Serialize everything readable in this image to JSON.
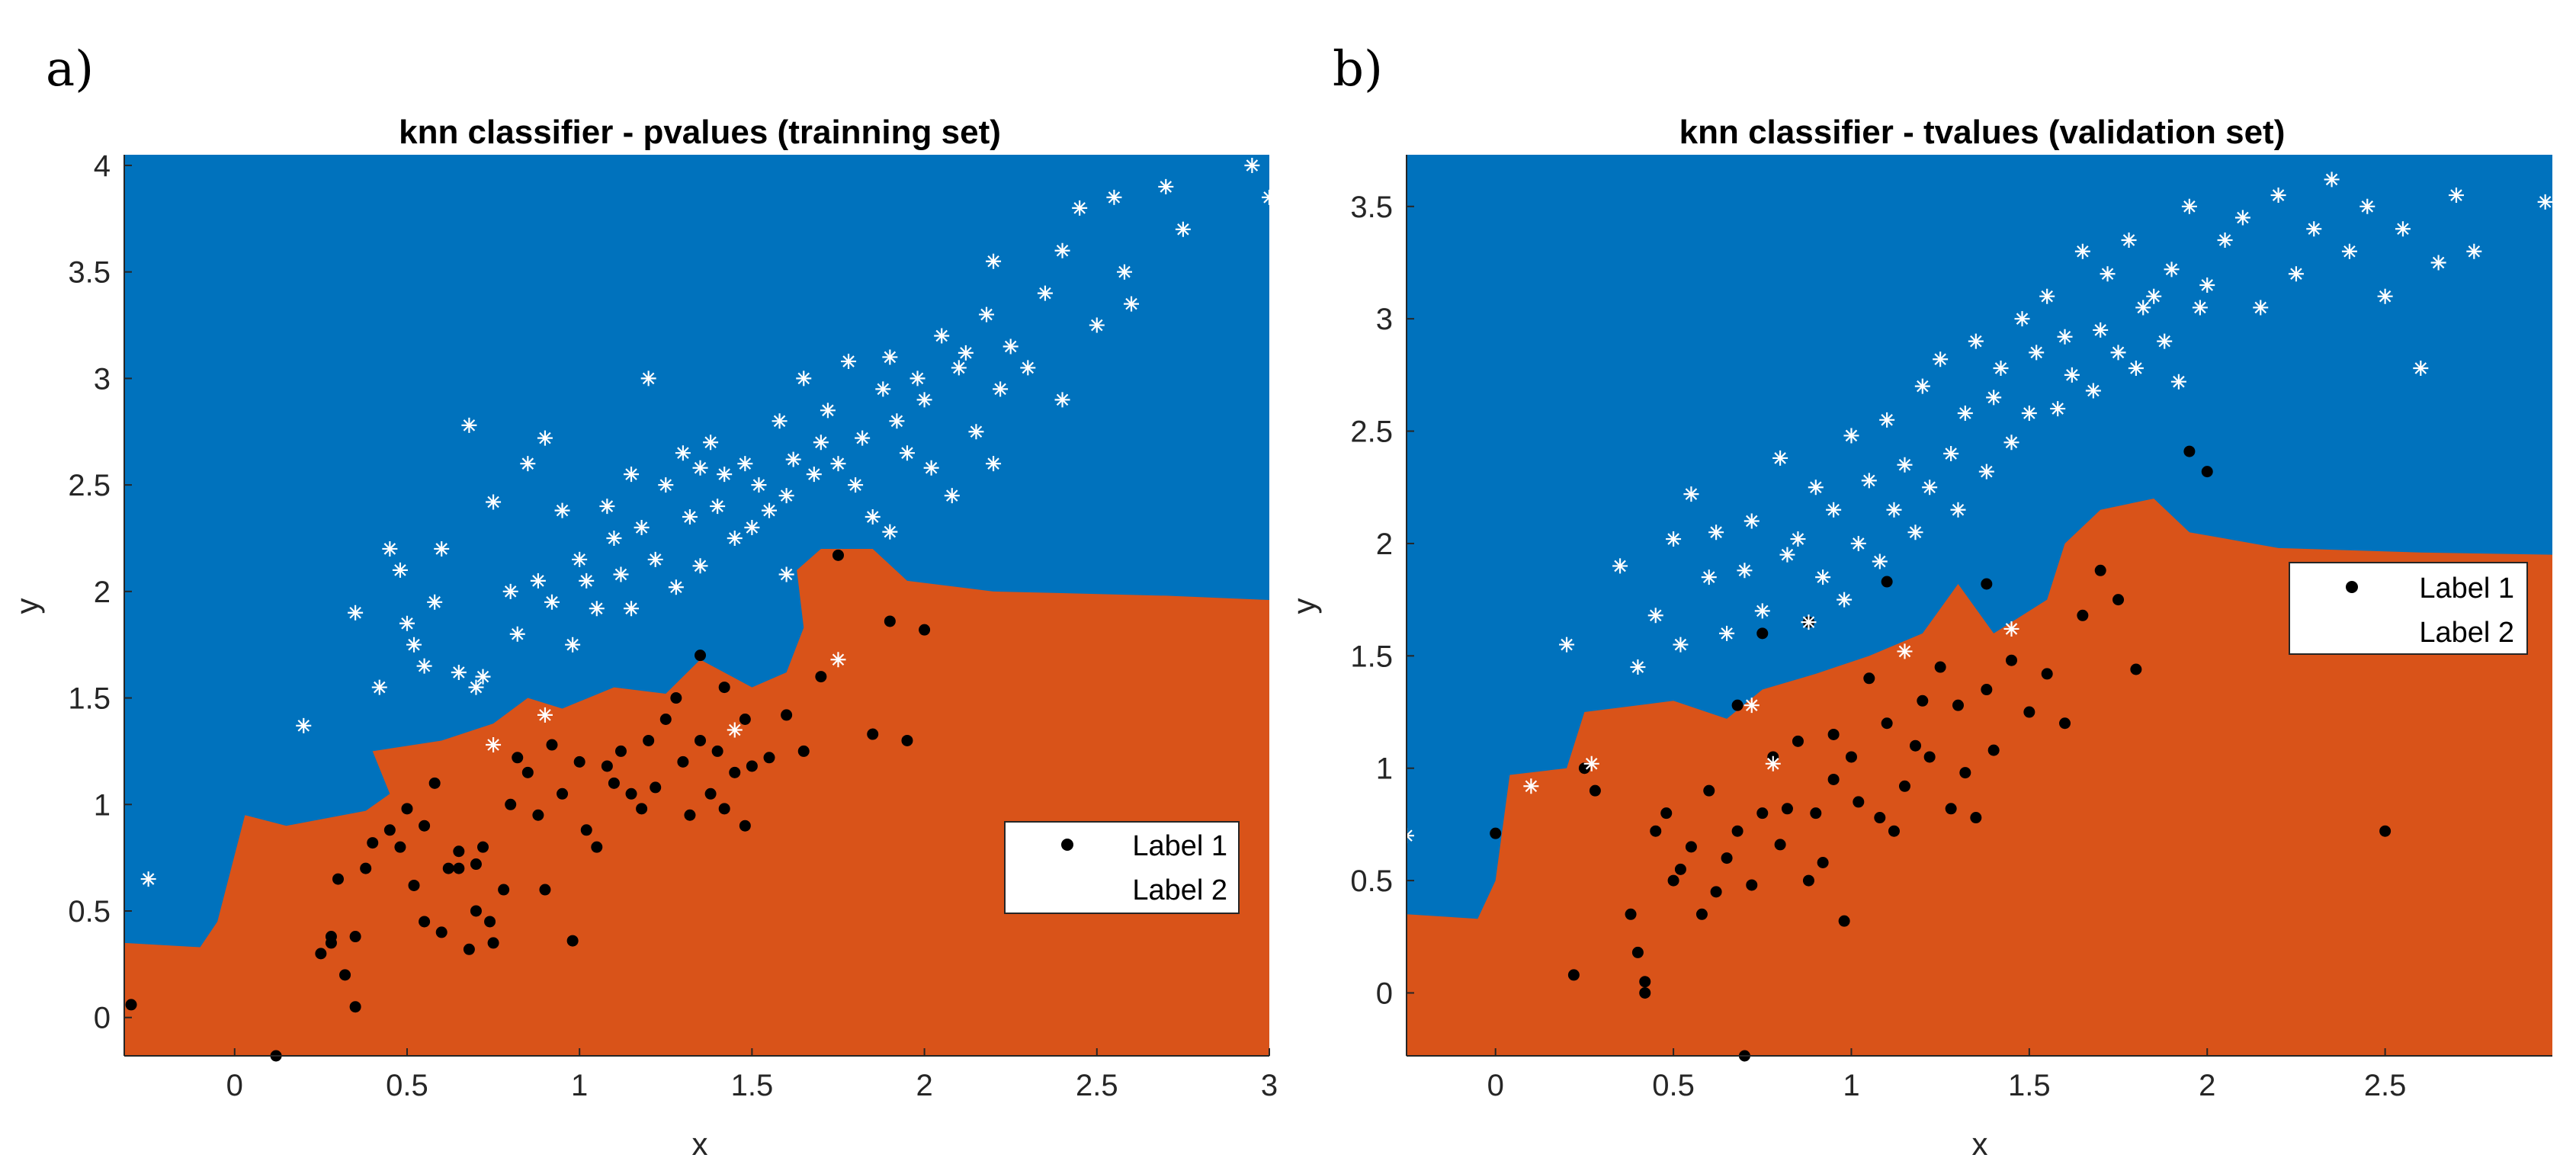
{
  "colors": {
    "class1_region": "#D95319",
    "class2_region": "#0072BD",
    "label1_marker": "#000000",
    "label2_marker": "#FFFFFF"
  },
  "chart_data": [
    {
      "panel": "a)",
      "type": "scatter",
      "title": "knn classifier - pvalues (trainning set)",
      "xlabel": "x",
      "ylabel": "y",
      "xlim": [
        -0.32,
        3.0
      ],
      "ylim": [
        -0.18,
        4.05
      ],
      "xticks": [
        "0",
        "0.5",
        "1",
        "1.5",
        "2",
        "2.5",
        "3"
      ],
      "yticks": [
        "0",
        "0.5",
        "1",
        "1.5",
        "2",
        "2.5",
        "3",
        "3.5",
        "4"
      ],
      "legend": {
        "placement": "lower-right",
        "entries": [
          "Label 1",
          "Label 2"
        ]
      },
      "decision_boundary": [
        [
          -0.32,
          0.35
        ],
        [
          -0.1,
          0.33
        ],
        [
          -0.05,
          0.45
        ],
        [
          0.03,
          0.95
        ],
        [
          0.15,
          0.9
        ],
        [
          0.38,
          0.97
        ],
        [
          0.45,
          1.05
        ],
        [
          0.4,
          1.25
        ],
        [
          0.6,
          1.3
        ],
        [
          0.75,
          1.38
        ],
        [
          0.85,
          1.5
        ],
        [
          0.95,
          1.45
        ],
        [
          1.1,
          1.55
        ],
        [
          1.25,
          1.52
        ],
        [
          1.35,
          1.68
        ],
        [
          1.5,
          1.55
        ],
        [
          1.6,
          1.62
        ],
        [
          1.65,
          1.83
        ],
        [
          1.63,
          2.1
        ],
        [
          1.7,
          2.2
        ],
        [
          1.85,
          2.2
        ],
        [
          1.95,
          2.05
        ],
        [
          2.2,
          2.0
        ],
        [
          2.7,
          1.98
        ],
        [
          3.0,
          1.96
        ]
      ],
      "series": [
        {
          "name": "Label 1",
          "marker": "dot",
          "x": [
            -0.3,
            0.12,
            0.25,
            0.28,
            0.3,
            0.32,
            0.35,
            0.35,
            0.38,
            0.4,
            0.45,
            0.48,
            0.5,
            0.52,
            0.55,
            0.55,
            0.58,
            0.6,
            0.62,
            0.65,
            0.68,
            0.7,
            0.72,
            0.74,
            0.75,
            0.78,
            0.8,
            0.82,
            0.85,
            0.88,
            0.9,
            0.92,
            0.95,
            0.98,
            1.0,
            1.02,
            1.05,
            1.08,
            1.1,
            1.12,
            1.15,
            1.18,
            1.2,
            1.22,
            1.25,
            1.28,
            1.3,
            1.32,
            1.35,
            1.38,
            1.4,
            1.42,
            1.45,
            1.48,
            1.5,
            1.55,
            1.6,
            1.65,
            1.7,
            1.75,
            1.85,
            1.9,
            1.95,
            2.0,
            1.35,
            1.42,
            1.48,
            0.65,
            0.7,
            0.28
          ],
          "y": [
            0.06,
            -0.18,
            0.3,
            0.38,
            0.65,
            0.2,
            0.05,
            0.38,
            0.7,
            0.82,
            0.88,
            0.8,
            0.98,
            0.62,
            0.45,
            0.9,
            1.1,
            0.4,
            0.7,
            0.78,
            0.32,
            0.5,
            0.8,
            0.45,
            0.35,
            0.6,
            1.0,
            1.22,
            1.15,
            0.95,
            0.6,
            1.28,
            1.05,
            0.36,
            1.2,
            0.88,
            0.8,
            1.18,
            1.1,
            1.25,
            1.05,
            0.98,
            1.3,
            1.08,
            1.4,
            1.5,
            1.2,
            0.95,
            1.3,
            1.05,
            1.25,
            0.98,
            1.15,
            1.4,
            1.18,
            1.22,
            1.42,
            1.25,
            1.6,
            2.17,
            1.33,
            1.86,
            1.3,
            1.82,
            1.7,
            1.55,
            0.9,
            0.7,
            0.72,
            0.35
          ]
        },
        {
          "name": "Label 2",
          "marker": "asterisk",
          "x": [
            -0.25,
            0.2,
            0.35,
            0.42,
            0.45,
            0.48,
            0.5,
            0.52,
            0.55,
            0.58,
            0.6,
            0.65,
            0.68,
            0.7,
            0.72,
            0.75,
            0.8,
            0.82,
            0.85,
            0.88,
            0.9,
            0.92,
            0.95,
            0.98,
            1.0,
            1.02,
            1.05,
            1.08,
            1.1,
            1.12,
            1.15,
            1.18,
            1.2,
            1.22,
            1.25,
            1.28,
            1.3,
            1.32,
            1.35,
            1.38,
            1.4,
            1.42,
            1.45,
            1.48,
            1.5,
            1.52,
            1.55,
            1.58,
            1.6,
            1.62,
            1.65,
            1.68,
            1.7,
            1.72,
            1.75,
            1.78,
            1.8,
            1.82,
            1.85,
            1.88,
            1.9,
            1.92,
            1.95,
            1.98,
            2.0,
            2.02,
            2.05,
            2.08,
            2.1,
            2.12,
            2.15,
            2.18,
            2.2,
            2.22,
            2.25,
            2.3,
            2.35,
            2.4,
            2.45,
            2.5,
            2.55,
            2.58,
            2.6,
            2.7,
            2.75,
            2.95,
            3.0,
            0.75,
            0.9,
            1.15,
            1.35,
            1.6,
            1.9,
            2.2,
            2.4,
            1.45,
            1.75
          ],
          "y": [
            0.65,
            1.37,
            1.9,
            1.55,
            2.2,
            2.1,
            1.85,
            1.75,
            1.65,
            1.95,
            2.2,
            1.62,
            2.78,
            1.55,
            1.6,
            2.42,
            2.0,
            1.8,
            2.6,
            2.05,
            2.72,
            1.95,
            2.38,
            1.75,
            2.15,
            2.05,
            1.92,
            2.4,
            2.25,
            2.08,
            2.55,
            2.3,
            3.0,
            2.15,
            2.5,
            2.02,
            2.65,
            2.35,
            2.12,
            2.7,
            2.4,
            2.55,
            2.25,
            2.6,
            2.3,
            2.5,
            2.38,
            2.8,
            2.45,
            2.62,
            3.0,
            2.55,
            2.7,
            2.85,
            2.6,
            3.08,
            2.5,
            2.72,
            2.35,
            2.95,
            3.1,
            2.8,
            2.65,
            3.0,
            2.9,
            2.58,
            3.2,
            2.45,
            3.05,
            3.12,
            2.75,
            3.3,
            3.55,
            2.95,
            3.15,
            3.05,
            3.4,
            3.6,
            3.8,
            3.25,
            3.85,
            3.5,
            3.35,
            3.9,
            3.7,
            4.0,
            3.85,
            1.28,
            1.42,
            1.92,
            2.58,
            2.08,
            2.28,
            2.6,
            2.9,
            1.35,
            1.68
          ]
        }
      ]
    },
    {
      "panel": "b)",
      "type": "scatter",
      "title": "knn classifier - tvalues (validation set)",
      "xlabel": "x",
      "ylabel": "y",
      "xlim": [
        -0.25,
        2.97
      ],
      "ylim": [
        -0.28,
        3.73
      ],
      "xticks": [
        "0",
        "0.5",
        "1",
        "1.5",
        "2",
        "2.5"
      ],
      "yticks": [
        "0",
        "0.5",
        "1",
        "1.5",
        "2",
        "2.5",
        "3",
        "3.5"
      ],
      "legend": {
        "placement": "upper-right",
        "entries": [
          "Label 1",
          "Label 2"
        ]
      },
      "decision_boundary": [
        [
          -0.25,
          0.35
        ],
        [
          -0.05,
          0.33
        ],
        [
          0.0,
          0.5
        ],
        [
          0.04,
          0.97
        ],
        [
          0.2,
          1.0
        ],
        [
          0.25,
          1.25
        ],
        [
          0.5,
          1.3
        ],
        [
          0.65,
          1.22
        ],
        [
          0.75,
          1.35
        ],
        [
          0.9,
          1.42
        ],
        [
          1.05,
          1.5
        ],
        [
          1.2,
          1.6
        ],
        [
          1.3,
          1.82
        ],
        [
          1.4,
          1.6
        ],
        [
          1.55,
          1.75
        ],
        [
          1.6,
          2.0
        ],
        [
          1.7,
          2.15
        ],
        [
          1.85,
          2.2
        ],
        [
          1.95,
          2.05
        ],
        [
          2.2,
          1.98
        ],
        [
          2.6,
          1.96
        ],
        [
          2.97,
          1.95
        ]
      ],
      "series": [
        {
          "name": "Label 1",
          "marker": "dot",
          "x": [
            0.0,
            0.22,
            0.25,
            0.28,
            0.38,
            0.4,
            0.42,
            0.42,
            0.45,
            0.48,
            0.5,
            0.52,
            0.55,
            0.58,
            0.6,
            0.62,
            0.65,
            0.68,
            0.7,
            0.72,
            0.75,
            0.78,
            0.8,
            0.82,
            0.85,
            0.88,
            0.9,
            0.92,
            0.95,
            0.98,
            1.0,
            1.02,
            1.05,
            1.08,
            1.1,
            1.12,
            1.15,
            1.18,
            1.2,
            1.22,
            1.25,
            1.28,
            1.3,
            1.32,
            1.35,
            1.38,
            1.4,
            1.45,
            1.5,
            1.55,
            1.6,
            1.65,
            1.7,
            1.75,
            1.8,
            1.95,
            2.0,
            2.5,
            0.68,
            0.75,
            0.88,
            0.95,
            1.1,
            1.38
          ],
          "y": [
            0.71,
            0.08,
            1.0,
            0.9,
            0.35,
            0.18,
            0.05,
            0.0,
            0.72,
            0.8,
            0.5,
            0.55,
            0.65,
            0.35,
            0.9,
            0.45,
            0.6,
            0.72,
            -0.28,
            0.48,
            0.8,
            1.05,
            0.66,
            0.82,
            1.12,
            0.5,
            0.8,
            0.58,
            0.95,
            0.32,
            1.05,
            0.85,
            1.4,
            0.78,
            1.2,
            0.72,
            0.92,
            1.1,
            1.3,
            1.05,
            1.45,
            0.82,
            1.28,
            0.98,
            0.78,
            1.35,
            1.08,
            1.48,
            1.25,
            1.42,
            1.2,
            1.68,
            1.88,
            1.75,
            1.44,
            2.41,
            2.32,
            0.72,
            1.28,
            1.6,
            1.65,
            1.15,
            1.83,
            1.82
          ],
          "extra": []
        },
        {
          "name": "Label 2",
          "marker": "asterisk",
          "x": [
            -0.25,
            0.1,
            0.2,
            0.27,
            0.35,
            0.4,
            0.45,
            0.5,
            0.52,
            0.55,
            0.6,
            0.62,
            0.65,
            0.7,
            0.72,
            0.75,
            0.8,
            0.82,
            0.85,
            0.88,
            0.9,
            0.92,
            0.95,
            0.98,
            1.0,
            1.02,
            1.05,
            1.08,
            1.1,
            1.12,
            1.15,
            1.18,
            1.2,
            1.22,
            1.25,
            1.28,
            1.3,
            1.32,
            1.35,
            1.38,
            1.4,
            1.42,
            1.45,
            1.48,
            1.5,
            1.52,
            1.55,
            1.58,
            1.6,
            1.62,
            1.65,
            1.68,
            1.7,
            1.72,
            1.75,
            1.78,
            1.8,
            1.82,
            1.85,
            1.88,
            1.9,
            1.92,
            1.95,
            1.98,
            2.0,
            2.05,
            2.1,
            2.15,
            2.2,
            2.25,
            2.3,
            2.35,
            2.4,
            2.45,
            2.5,
            2.55,
            2.6,
            2.65,
            2.7,
            2.75,
            2.95,
            0.72,
            0.78,
            1.45,
            1.15
          ],
          "y": [
            0.7,
            0.92,
            1.55,
            1.02,
            1.9,
            1.45,
            1.68,
            2.02,
            1.55,
            2.22,
            1.85,
            2.05,
            1.6,
            1.88,
            2.1,
            1.7,
            2.38,
            1.95,
            2.02,
            1.65,
            2.25,
            1.85,
            2.15,
            1.75,
            2.48,
            2.0,
            2.28,
            1.92,
            2.55,
            2.15,
            2.35,
            2.05,
            2.7,
            2.25,
            2.82,
            2.4,
            2.15,
            2.58,
            2.9,
            2.32,
            2.65,
            2.78,
            2.45,
            3.0,
            2.58,
            2.85,
            3.1,
            2.6,
            2.92,
            2.75,
            3.3,
            2.68,
            2.95,
            3.2,
            2.85,
            3.35,
            2.78,
            3.05,
            3.1,
            2.9,
            3.22,
            2.72,
            3.5,
            3.05,
            3.15,
            3.35,
            3.45,
            3.05,
            3.55,
            3.2,
            3.4,
            3.62,
            3.3,
            3.5,
            3.1,
            3.4,
            2.78,
            3.25,
            3.55,
            3.3,
            3.52,
            1.28,
            1.02,
            1.62,
            1.52
          ],
          "extra": []
        }
      ]
    }
  ]
}
